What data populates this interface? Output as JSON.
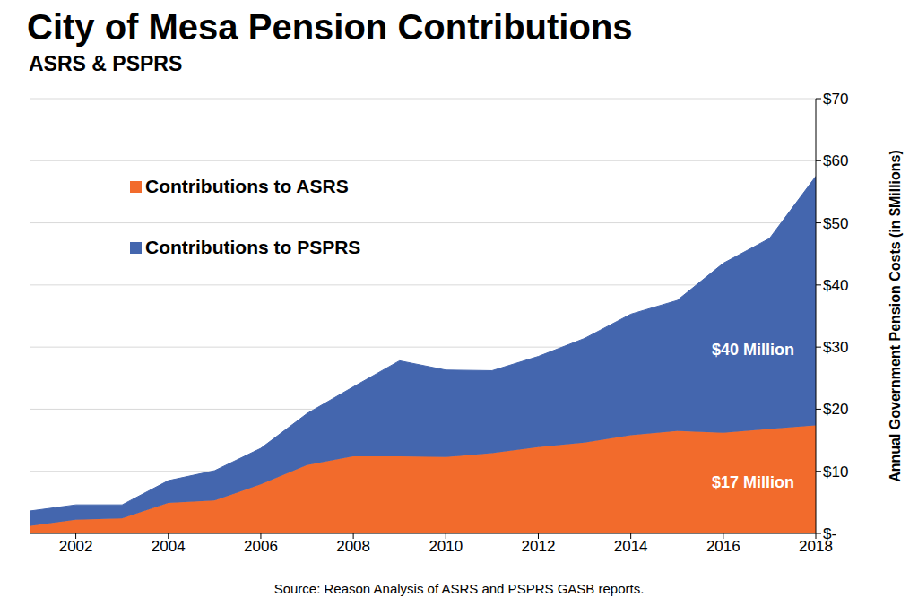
{
  "chart_data": {
    "type": "area",
    "stacked": true,
    "title": "City of Mesa Pension Contributions",
    "subtitle": "ASRS & PSPRS",
    "y_label": "Annual Government Pension Costs (in $Millions)",
    "source": "Source: Reason Analysis of ASRS and PSPRS GASB reports.",
    "x": [
      2001,
      2002,
      2003,
      2004,
      2005,
      2006,
      2007,
      2008,
      2009,
      2010,
      2011,
      2012,
      2013,
      2014,
      2015,
      2016,
      2017,
      2018
    ],
    "series": [
      {
        "name": "Contributions to ASRS",
        "color": "#f26b2c",
        "label": "$17 Million",
        "values": [
          1.2,
          2.2,
          2.4,
          4.9,
          5.3,
          7.9,
          11.0,
          12.4,
          12.4,
          12.3,
          12.9,
          13.9,
          14.6,
          15.8,
          16.5,
          16.2,
          16.8,
          17.4
        ]
      },
      {
        "name": "Contributions to PSPRS",
        "color": "#4466ae",
        "label": "$40 Million",
        "values": [
          2.4,
          2.4,
          2.2,
          3.6,
          4.8,
          5.8,
          8.3,
          11.2,
          15.4,
          14.0,
          13.3,
          14.6,
          16.8,
          19.5,
          21.0,
          27.3,
          30.7,
          40.1
        ]
      }
    ],
    "xlim": [
      2001,
      2018
    ],
    "xticks": [
      2002,
      2004,
      2006,
      2008,
      2010,
      2012,
      2014,
      2016,
      2018
    ],
    "ylim": [
      0,
      70
    ],
    "yticks": [
      {
        "value": 0,
        "label": "$-"
      },
      {
        "value": 10,
        "label": "$10"
      },
      {
        "value": 20,
        "label": "$20"
      },
      {
        "value": 30,
        "label": "$30"
      },
      {
        "value": 40,
        "label": "$40"
      },
      {
        "value": 50,
        "label": "$50"
      },
      {
        "value": 60,
        "label": "$60"
      },
      {
        "value": 70,
        "label": "$70"
      }
    ],
    "grid": true,
    "legend": "upper left"
  }
}
